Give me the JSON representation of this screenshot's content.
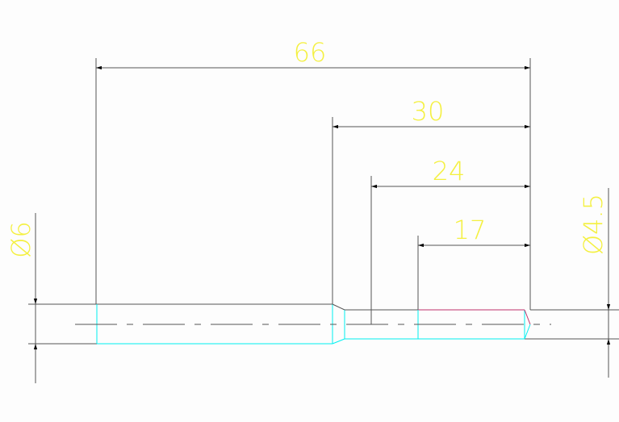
{
  "drawing": {
    "dimensions": {
      "overall_length": "66",
      "length_30": "30",
      "length_24": "24",
      "length_17": "17",
      "diameter_left": "Ø6",
      "diameter_right": "Ø4.5"
    },
    "colors": {
      "lines": "#555555",
      "part_edges": "#00f0f0",
      "highlight_edge": "#c0306a",
      "dimension_text": "#f4f040"
    }
  }
}
